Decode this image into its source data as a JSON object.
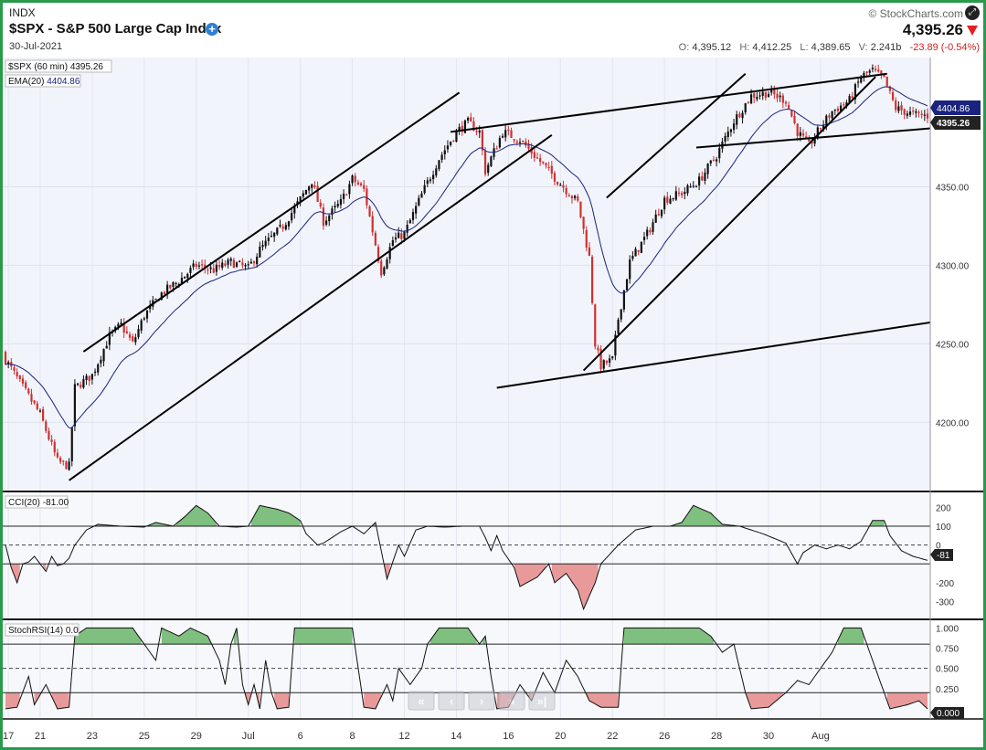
{
  "header": {
    "exchange": "INDX",
    "title": "$SPX - S&P 500 Large Cap Index",
    "date": "30-Jul-2021",
    "brand": "© StockCharts.com",
    "price": "4,395.26",
    "open_label": "O:",
    "open": "4,395.12",
    "high_label": "H:",
    "high": "4,412.25",
    "low_label": "L:",
    "low": "4,389.65",
    "vol_label": "V:",
    "volume": "2.241b",
    "change": "-23.89 (-0.54%)"
  },
  "colors": {
    "up": "#111111",
    "down": "#d03030",
    "ema": "#1a237e",
    "pos_fill": "#7fbf7f",
    "neg_fill": "#e89a9a",
    "frame": "#2a9a4a",
    "price_tag": "#222222",
    "ema_tag": "#1a237e"
  },
  "nav_icons": [
    "first-icon",
    "prev-icon",
    "next-icon",
    "last-icon",
    "end-icon"
  ],
  "chart_data": [
    {
      "type": "candlestick",
      "name": "$SPX (60 min)",
      "legend_value": "4395.26",
      "overlay_name": "EMA(20)",
      "overlay_value": "4404.86",
      "price_tag": "4395.26",
      "ema_tag": "4404.86",
      "ylim": [
        4160,
        4430
      ],
      "yticks": [
        "4200.00",
        "4250.00",
        "4300.00",
        "4350.00"
      ],
      "ytick_values": [
        4200,
        4250,
        4300,
        4350
      ],
      "x_ticks": [
        "17",
        "21",
        "23",
        "25",
        "29",
        "Jul",
        "6",
        "8",
        "12",
        "14",
        "16",
        "20",
        "22",
        "26",
        "28",
        "30",
        "Aug"
      ],
      "x_tick_bar_index": [
        1,
        12,
        30,
        48,
        66,
        84,
        102,
        120,
        138,
        156,
        174,
        192,
        210,
        228,
        246,
        264,
        282
      ],
      "bar_count": 286,
      "close_anchors": [
        [
          0,
          4240
        ],
        [
          5,
          4225
        ],
        [
          12,
          4205
        ],
        [
          18,
          4175
        ],
        [
          22,
          4172
        ],
        [
          24,
          4222
        ],
        [
          30,
          4230
        ],
        [
          36,
          4255
        ],
        [
          40,
          4262
        ],
        [
          44,
          4250
        ],
        [
          48,
          4268
        ],
        [
          54,
          4282
        ],
        [
          60,
          4290
        ],
        [
          66,
          4300
        ],
        [
          72,
          4297
        ],
        [
          78,
          4302
        ],
        [
          84,
          4298
        ],
        [
          88,
          4310
        ],
        [
          96,
          4325
        ],
        [
          102,
          4342
        ],
        [
          106,
          4354
        ],
        [
          110,
          4328
        ],
        [
          116,
          4340
        ],
        [
          120,
          4355
        ],
        [
          124,
          4348
        ],
        [
          130,
          4296
        ],
        [
          134,
          4316
        ],
        [
          138,
          4320
        ],
        [
          144,
          4345
        ],
        [
          150,
          4368
        ],
        [
          156,
          4385
        ],
        [
          160,
          4391
        ],
        [
          164,
          4385
        ],
        [
          166,
          4360
        ],
        [
          172,
          4385
        ],
        [
          178,
          4380
        ],
        [
          184,
          4368
        ],
        [
          192,
          4352
        ],
        [
          198,
          4340
        ],
        [
          202,
          4305
        ],
        [
          204,
          4250
        ],
        [
          206,
          4236
        ],
        [
          210,
          4240
        ],
        [
          212,
          4266
        ],
        [
          216,
          4302
        ],
        [
          222,
          4320
        ],
        [
          228,
          4342
        ],
        [
          234,
          4346
        ],
        [
          240,
          4354
        ],
        [
          246,
          4370
        ],
        [
          252,
          4392
        ],
        [
          258,
          4408
        ],
        [
          264,
          4410
        ],
        [
          270,
          4405
        ],
        [
          274,
          4385
        ],
        [
          278,
          4376
        ],
        [
          282,
          4388
        ],
        [
          286,
          4398
        ],
        [
          292,
          4405
        ],
        [
          296,
          4420
        ],
        [
          300,
          4424
        ],
        [
          304,
          4418
        ],
        [
          308,
          4400
        ],
        [
          314,
          4396
        ],
        [
          319,
          4395.26
        ]
      ],
      "trendlines": [
        {
          "from": [
            27,
            4245
          ],
          "to": [
            157,
            4410
          ]
        },
        {
          "from": [
            22,
            4163
          ],
          "to": [
            189,
            4383
          ]
        },
        {
          "from": [
            154,
            4385
          ],
          "to": [
            305,
            4422
          ]
        },
        {
          "from": [
            170,
            4222
          ],
          "to": [
            325,
            4265
          ]
        },
        {
          "from": [
            200,
            4233
          ],
          "to": [
            301,
            4420
          ]
        },
        {
          "from": [
            208,
            4343
          ],
          "to": [
            256,
            4422
          ]
        },
        {
          "from": [
            239,
            4375
          ],
          "to": [
            325,
            4388
          ]
        }
      ]
    },
    {
      "type": "line",
      "name": "CCI(20)",
      "legend_value": "-81.00",
      "last_tag": "-81",
      "ylim": [
        -380,
        260
      ],
      "yticks": [
        "200",
        "100",
        "0",
        "-200",
        "-300"
      ],
      "ytick_values": [
        200,
        100,
        0,
        -200,
        -300
      ],
      "bands": [
        100,
        -100
      ],
      "midline": 0,
      "anchors": [
        [
          0,
          0
        ],
        [
          2,
          -120
        ],
        [
          4,
          -200
        ],
        [
          6,
          -100
        ],
        [
          8,
          -90
        ],
        [
          10,
          -60
        ],
        [
          12,
          -100
        ],
        [
          14,
          -140
        ],
        [
          16,
          -60
        ],
        [
          18,
          -110
        ],
        [
          20,
          -100
        ],
        [
          22,
          -70
        ],
        [
          24,
          0
        ],
        [
          28,
          80
        ],
        [
          32,
          110
        ],
        [
          40,
          100
        ],
        [
          48,
          95
        ],
        [
          52,
          120
        ],
        [
          58,
          100
        ],
        [
          62,
          150
        ],
        [
          66,
          210
        ],
        [
          70,
          170
        ],
        [
          74,
          100
        ],
        [
          80,
          95
        ],
        [
          84,
          100
        ],
        [
          88,
          210
        ],
        [
          94,
          190
        ],
        [
          98,
          170
        ],
        [
          102,
          130
        ],
        [
          104,
          60
        ],
        [
          108,
          0
        ],
        [
          110,
          10
        ],
        [
          116,
          70
        ],
        [
          120,
          100
        ],
        [
          124,
          60
        ],
        [
          128,
          120
        ],
        [
          132,
          -180
        ],
        [
          136,
          0
        ],
        [
          138,
          -60
        ],
        [
          142,
          80
        ],
        [
          146,
          100
        ],
        [
          152,
          95
        ],
        [
          158,
          100
        ],
        [
          164,
          100
        ],
        [
          166,
          40
        ],
        [
          168,
          -30
        ],
        [
          170,
          50
        ],
        [
          172,
          -30
        ],
        [
          176,
          -120
        ],
        [
          178,
          -220
        ],
        [
          184,
          -170
        ],
        [
          188,
          -100
        ],
        [
          190,
          -200
        ],
        [
          194,
          -150
        ],
        [
          198,
          -240
        ],
        [
          200,
          -340
        ],
        [
          204,
          -200
        ],
        [
          206,
          -100
        ],
        [
          212,
          0
        ],
        [
          218,
          80
        ],
        [
          224,
          100
        ],
        [
          230,
          100
        ],
        [
          234,
          120
        ],
        [
          238,
          210
        ],
        [
          244,
          170
        ],
        [
          248,
          110
        ],
        [
          254,
          100
        ],
        [
          262,
          60
        ],
        [
          270,
          10
        ],
        [
          274,
          -100
        ],
        [
          276,
          -40
        ],
        [
          280,
          0
        ],
        [
          284,
          -20
        ],
        [
          288,
          0
        ],
        [
          292,
          -20
        ],
        [
          296,
          20
        ],
        [
          300,
          130
        ],
        [
          304,
          130
        ],
        [
          306,
          50
        ],
        [
          310,
          -30
        ],
        [
          314,
          -60
        ],
        [
          319,
          -81
        ]
      ]
    },
    {
      "type": "line",
      "name": "StochRSI(14)",
      "legend_value": "0.0",
      "last_tag": "0.000",
      "ylim": [
        -0.08,
        1.05
      ],
      "yticks": [
        "1.000",
        "0.750",
        "0.500",
        "0.250"
      ],
      "ytick_values": [
        1.0,
        0.75,
        0.5,
        0.25
      ],
      "bands": [
        0.8,
        0.2
      ],
      "midline": 0.5,
      "anchors": [
        [
          0,
          0
        ],
        [
          4,
          0.02
        ],
        [
          8,
          0.4
        ],
        [
          10,
          0.05
        ],
        [
          14,
          0.3
        ],
        [
          18,
          0
        ],
        [
          22,
          0.02
        ],
        [
          24,
          0.9
        ],
        [
          28,
          1
        ],
        [
          44,
          1
        ],
        [
          48,
          0.8
        ],
        [
          52,
          0.6
        ],
        [
          54,
          1
        ],
        [
          60,
          0.9
        ],
        [
          64,
          1
        ],
        [
          70,
          0.9
        ],
        [
          74,
          0.6
        ],
        [
          76,
          0.3
        ],
        [
          78,
          0.8
        ],
        [
          80,
          1
        ],
        [
          82,
          0.3
        ],
        [
          84,
          0.05
        ],
        [
          86,
          0.3
        ],
        [
          88,
          0
        ],
        [
          90,
          0.6
        ],
        [
          92,
          0.2
        ],
        [
          94,
          0
        ],
        [
          98,
          0.02
        ],
        [
          100,
          1
        ],
        [
          120,
          1
        ],
        [
          124,
          0.02
        ],
        [
          128,
          0
        ],
        [
          132,
          0.3
        ],
        [
          134,
          0.1
        ],
        [
          136,
          0.5
        ],
        [
          140,
          0.3
        ],
        [
          144,
          0.5
        ],
        [
          146,
          0.8
        ],
        [
          150,
          1
        ],
        [
          160,
          1
        ],
        [
          164,
          0.8
        ],
        [
          166,
          0.9
        ],
        [
          168,
          0.4
        ],
        [
          170,
          0
        ],
        [
          174,
          0.02
        ],
        [
          178,
          0.3
        ],
        [
          182,
          0.1
        ],
        [
          186,
          0.45
        ],
        [
          190,
          0.2
        ],
        [
          194,
          0.6
        ],
        [
          198,
          0.4
        ],
        [
          202,
          0.1
        ],
        [
          206,
          0.02
        ],
        [
          212,
          0.02
        ],
        [
          214,
          1
        ],
        [
          240,
          1
        ],
        [
          244,
          0.9
        ],
        [
          248,
          0.7
        ],
        [
          252,
          0.8
        ],
        [
          256,
          0.2
        ],
        [
          258,
          0
        ],
        [
          264,
          0.02
        ],
        [
          270,
          0.2
        ],
        [
          274,
          0.35
        ],
        [
          278,
          0.3
        ],
        [
          282,
          0.5
        ],
        [
          286,
          0.7
        ],
        [
          290,
          1
        ],
        [
          296,
          1
        ],
        [
          300,
          0.6
        ],
        [
          304,
          0.2
        ],
        [
          306,
          0
        ],
        [
          312,
          0.05
        ],
        [
          316,
          0.1
        ],
        [
          319,
          0
        ]
      ]
    }
  ]
}
